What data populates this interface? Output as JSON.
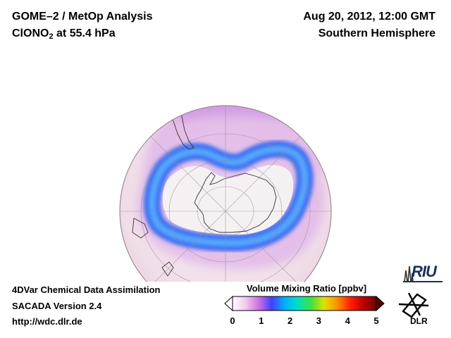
{
  "header": {
    "line1_left": "GOME–2 / MetOp Analysis",
    "species_main": "ClONO",
    "species_sub": "2",
    "species_rest": " at 55.4 hPa",
    "date": "Aug 20, 2012, 12:00 GMT",
    "region": "Southern Hemisphere"
  },
  "footer": {
    "line1": "4DVar Chemical Data Assimilation",
    "line2": "SACADA Version 2.4",
    "line3": "http://wdc.dlr.de"
  },
  "colorbar": {
    "title": "Volume Mixing Ratio [ppbv]",
    "ticks": [
      "0",
      "1",
      "2",
      "3",
      "4",
      "5"
    ],
    "range": [
      0,
      5
    ],
    "colors": [
      "#ffffff",
      "#f0c8f0",
      "#d070e0",
      "#4040ff",
      "#00b0ff",
      "#00e0c0",
      "#40e040",
      "#e0e000",
      "#ff9000",
      "#ff2000",
      "#c00000",
      "#700000"
    ]
  },
  "logos": {
    "riu": "RIU",
    "dlr": "DLR"
  },
  "map_colors": {
    "ocean_bg": "#f3e8ee",
    "antarctica": "#f5f1f3",
    "vortex_edge": "#3a6cf0",
    "vortex_inner": "#55a8ff",
    "halo": "#d9a2e8"
  }
}
